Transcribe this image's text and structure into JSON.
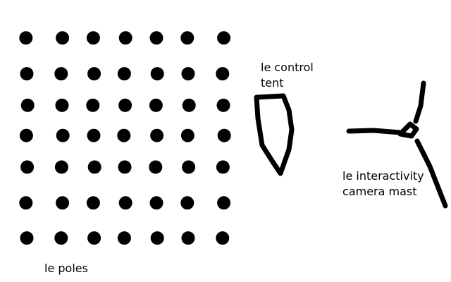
{
  "colors": {
    "background": "#ffffff",
    "ink": "#000000"
  },
  "pole_grid": {
    "rows": 7,
    "columns": 7
  },
  "labels": {
    "control_tent": [
      "le control",
      "tent"
    ],
    "camera_mast": [
      "le interactivity",
      "camera mast"
    ],
    "poles": "le poles"
  }
}
